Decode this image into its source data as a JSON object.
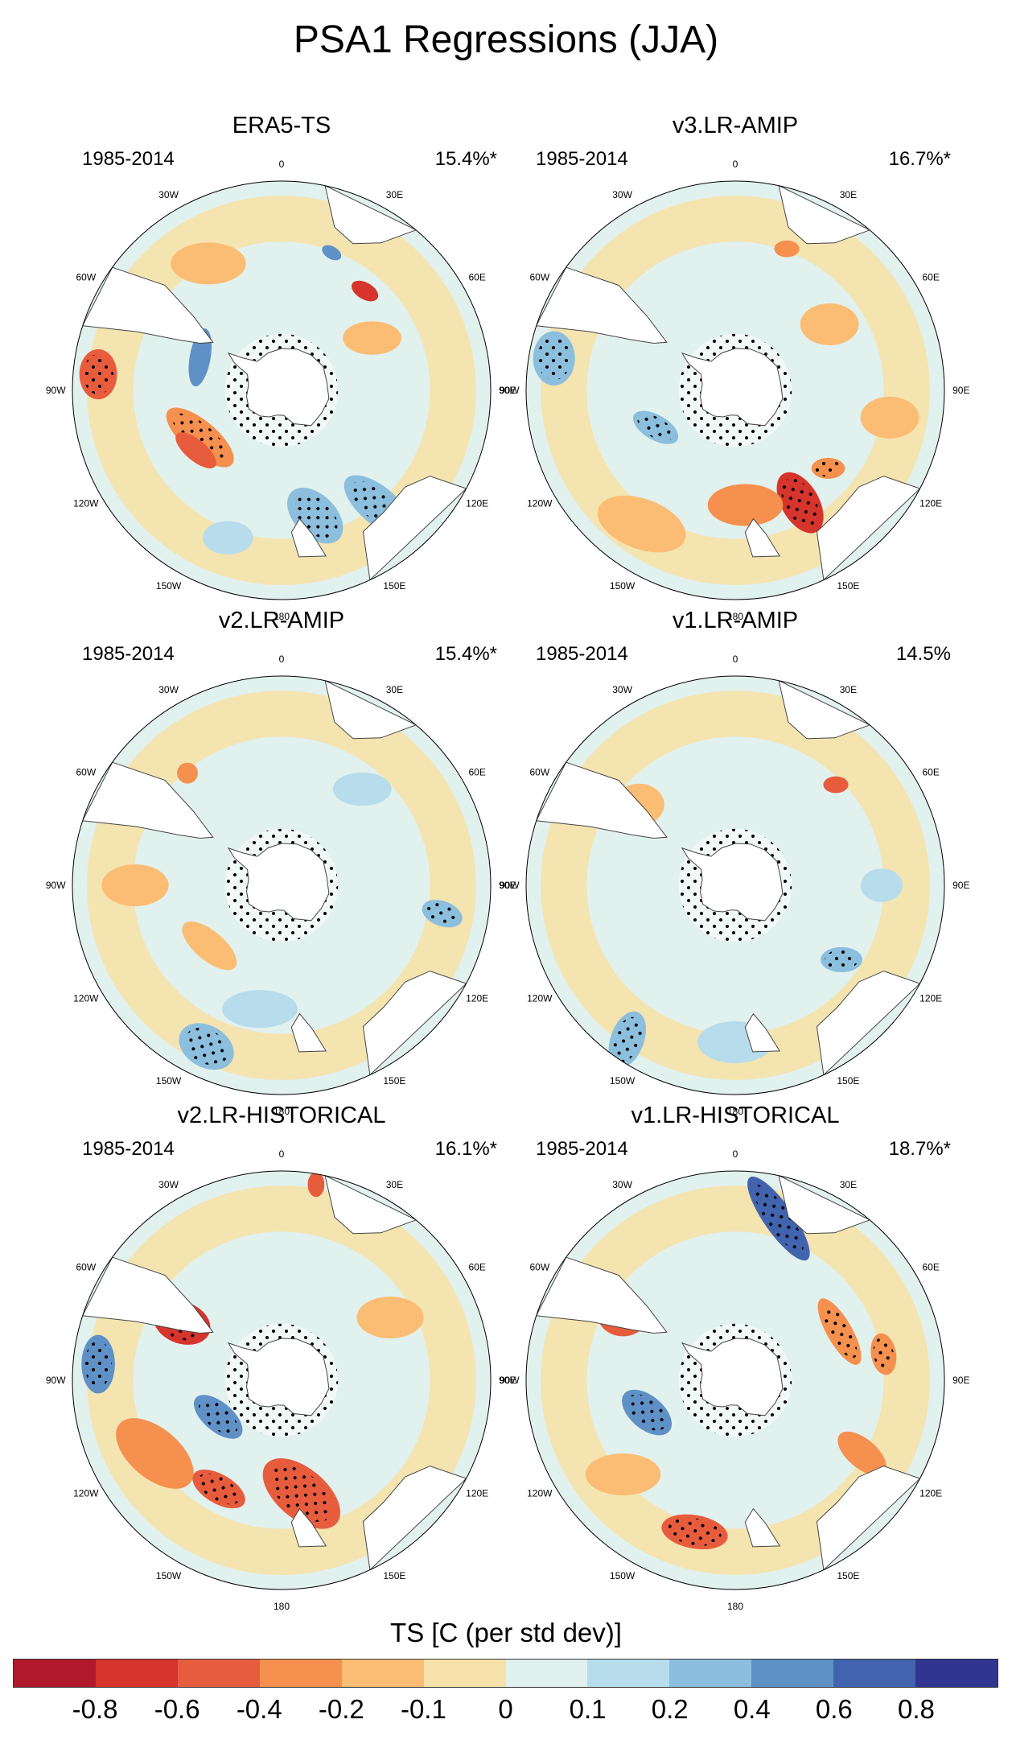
{
  "title": "PSA1 Regressions (JJA)",
  "chart_data": {
    "type": "heatmap",
    "projection": "south-polar-stereographic",
    "variable": "TS",
    "colorbar_label": "TS [C (per std dev)]",
    "levels": [
      "-0.8",
      "-0.6",
      "-0.4",
      "-0.2",
      "-0.1",
      "0",
      "0.1",
      "0.2",
      "0.4",
      "0.6",
      "0.8"
    ],
    "colors": [
      "#b2182b",
      "#d6342c",
      "#e85c3e",
      "#f5904f",
      "#fbbd73",
      "#f6e2a8",
      "#e1f1ee",
      "#b7dceb",
      "#8cbedd",
      "#5f91c7",
      "#4264ae",
      "#2f3590"
    ],
    "longitude_labels": [
      "0",
      "30E",
      "60E",
      "90E",
      "120E",
      "150E",
      "180",
      "150W",
      "120W",
      "90W",
      "60W",
      "30W"
    ],
    "panels": [
      {
        "name": "ERA5-TS",
        "period": "1985-2014",
        "variance": "15.4%*",
        "anomalies": [
          {
            "lon": 165,
            "r": 0.62,
            "rx": 0.16,
            "ry": 0.1,
            "rot": 45,
            "level": 8,
            "dots": true
          },
          {
            "lon": 140,
            "r": 0.72,
            "rx": 0.2,
            "ry": 0.09,
            "rot": 40,
            "level": 8,
            "dots": true
          },
          {
            "lon": 200,
            "r": 0.75,
            "rx": 0.12,
            "ry": 0.08,
            "rot": 0,
            "level": 7,
            "dots": false
          },
          {
            "lon": 240,
            "r": 0.45,
            "rx": 0.2,
            "ry": 0.08,
            "rot": 40,
            "level": 3,
            "dots": true
          },
          {
            "lon": 235,
            "r": 0.5,
            "rx": 0.12,
            "ry": 0.05,
            "rot": 40,
            "level": 2,
            "dots": false
          },
          {
            "lon": 275,
            "r": 0.88,
            "rx": 0.09,
            "ry": 0.12,
            "rot": 0,
            "level": 2,
            "dots": true
          },
          {
            "lon": 292,
            "r": 0.42,
            "rx": 0.05,
            "ry": 0.14,
            "rot": 10,
            "level": 9,
            "dots": false
          },
          {
            "lon": 40,
            "r": 0.62,
            "rx": 0.07,
            "ry": 0.04,
            "rot": 30,
            "level": 1,
            "dots": false
          },
          {
            "lon": 20,
            "r": 0.7,
            "rx": 0.05,
            "ry": 0.03,
            "rot": 30,
            "level": 9,
            "dots": false
          },
          {
            "lon": 60,
            "r": 0.5,
            "rx": 0.14,
            "ry": 0.08,
            "rot": 0,
            "level": 4,
            "dots": false
          },
          {
            "lon": 330,
            "r": 0.7,
            "rx": 0.18,
            "ry": 0.1,
            "rot": 0,
            "level": 4,
            "dots": false
          }
        ]
      },
      {
        "name": "v3.LR-AMIP",
        "period": "1985-2014",
        "variance": "16.7%*",
        "anomalies": [
          {
            "lon": 150,
            "r": 0.62,
            "rx": 0.16,
            "ry": 0.09,
            "rot": 60,
            "level": 1,
            "dots": true
          },
          {
            "lon": 175,
            "r": 0.55,
            "rx": 0.18,
            "ry": 0.1,
            "rot": 0,
            "level": 3,
            "dots": false
          },
          {
            "lon": 215,
            "r": 0.78,
            "rx": 0.22,
            "ry": 0.12,
            "rot": 20,
            "level": 4,
            "dots": false
          },
          {
            "lon": 245,
            "r": 0.42,
            "rx": 0.12,
            "ry": 0.06,
            "rot": 30,
            "level": 8,
            "dots": true
          },
          {
            "lon": 280,
            "r": 0.88,
            "rx": 0.1,
            "ry": 0.13,
            "rot": 0,
            "level": 8,
            "dots": true
          },
          {
            "lon": 130,
            "r": 0.58,
            "rx": 0.08,
            "ry": 0.05,
            "rot": 0,
            "level": 3,
            "dots": true
          },
          {
            "lon": 55,
            "r": 0.55,
            "rx": 0.14,
            "ry": 0.1,
            "rot": 0,
            "level": 4,
            "dots": false
          },
          {
            "lon": 20,
            "r": 0.72,
            "rx": 0.06,
            "ry": 0.04,
            "rot": 0,
            "level": 3,
            "dots": false
          },
          {
            "lon": 100,
            "r": 0.75,
            "rx": 0.14,
            "ry": 0.1,
            "rot": 0,
            "level": 4,
            "dots": false
          }
        ]
      },
      {
        "name": "v2.LR-AMIP",
        "period": "1985-2014",
        "variance": "15.4%*",
        "anomalies": [
          {
            "lon": 205,
            "r": 0.85,
            "rx": 0.14,
            "ry": 0.1,
            "rot": 30,
            "level": 8,
            "dots": true
          },
          {
            "lon": 190,
            "r": 0.6,
            "rx": 0.18,
            "ry": 0.09,
            "rot": 0,
            "level": 7,
            "dots": false
          },
          {
            "lon": 230,
            "r": 0.45,
            "rx": 0.16,
            "ry": 0.07,
            "rot": 40,
            "level": 4,
            "dots": false
          },
          {
            "lon": 100,
            "r": 0.78,
            "rx": 0.1,
            "ry": 0.06,
            "rot": 20,
            "level": 8,
            "dots": true
          },
          {
            "lon": 40,
            "r": 0.6,
            "rx": 0.14,
            "ry": 0.08,
            "rot": 0,
            "level": 7,
            "dots": false
          },
          {
            "lon": 320,
            "r": 0.7,
            "rx": 0.05,
            "ry": 0.05,
            "rot": 0,
            "level": 3,
            "dots": false
          },
          {
            "lon": 270,
            "r": 0.7,
            "rx": 0.16,
            "ry": 0.1,
            "rot": 0,
            "level": 4,
            "dots": false
          }
        ]
      },
      {
        "name": "v1.LR-AMIP",
        "period": "1985-2014",
        "variance": "14.5%",
        "anomalies": [
          {
            "lon": 125,
            "r": 0.62,
            "rx": 0.1,
            "ry": 0.06,
            "rot": 0,
            "level": 8,
            "dots": true
          },
          {
            "lon": 215,
            "r": 0.9,
            "rx": 0.08,
            "ry": 0.14,
            "rot": 20,
            "level": 8,
            "dots": true
          },
          {
            "lon": 45,
            "r": 0.68,
            "rx": 0.06,
            "ry": 0.04,
            "rot": 0,
            "level": 2,
            "dots": false
          },
          {
            "lon": 180,
            "r": 0.75,
            "rx": 0.18,
            "ry": 0.1,
            "rot": 0,
            "level": 7,
            "dots": false
          },
          {
            "lon": 310,
            "r": 0.6,
            "rx": 0.12,
            "ry": 0.1,
            "rot": 0,
            "level": 4,
            "dots": false
          },
          {
            "lon": 90,
            "r": 0.7,
            "rx": 0.1,
            "ry": 0.08,
            "rot": 0,
            "level": 7,
            "dots": false
          }
        ]
      },
      {
        "name": "v2.LR-HISTORICAL",
        "period": "1985-2014",
        "variance": "16.1%*",
        "anomalies": [
          {
            "lon": 170,
            "r": 0.55,
            "rx": 0.22,
            "ry": 0.12,
            "rot": 40,
            "level": 2,
            "dots": true
          },
          {
            "lon": 210,
            "r": 0.6,
            "rx": 0.14,
            "ry": 0.07,
            "rot": 30,
            "level": 2,
            "dots": true
          },
          {
            "lon": 300,
            "r": 0.55,
            "rx": 0.14,
            "ry": 0.1,
            "rot": 20,
            "level": 1,
            "dots": true
          },
          {
            "lon": 240,
            "r": 0.35,
            "rx": 0.14,
            "ry": 0.07,
            "rot": 40,
            "level": 9,
            "dots": true
          },
          {
            "lon": 275,
            "r": 0.88,
            "rx": 0.08,
            "ry": 0.14,
            "rot": 0,
            "level": 9,
            "dots": true
          },
          {
            "lon": 240,
            "r": 0.7,
            "rx": 0.22,
            "ry": 0.12,
            "rot": 40,
            "level": 3,
            "dots": false
          },
          {
            "lon": 10,
            "r": 0.95,
            "rx": 0.04,
            "ry": 0.06,
            "rot": 0,
            "level": 2,
            "dots": false
          },
          {
            "lon": 60,
            "r": 0.6,
            "rx": 0.16,
            "ry": 0.1,
            "rot": 0,
            "level": 4,
            "dots": false
          }
        ]
      },
      {
        "name": "v1.LR-HISTORICAL",
        "period": "1985-2014",
        "variance": "18.7%*",
        "anomalies": [
          {
            "lon": 15,
            "r": 0.8,
            "rx": 0.24,
            "ry": 0.07,
            "rot": 55,
            "level": 10,
            "dots": true
          },
          {
            "lon": 65,
            "r": 0.55,
            "rx": 0.18,
            "ry": 0.06,
            "rot": 60,
            "level": 3,
            "dots": true
          },
          {
            "lon": 80,
            "r": 0.72,
            "rx": 0.1,
            "ry": 0.06,
            "rot": 80,
            "level": 3,
            "dots": true
          },
          {
            "lon": 195,
            "r": 0.75,
            "rx": 0.16,
            "ry": 0.08,
            "rot": 10,
            "level": 2,
            "dots": true
          },
          {
            "lon": 250,
            "r": 0.45,
            "rx": 0.14,
            "ry": 0.08,
            "rot": 40,
            "level": 9,
            "dots": true
          },
          {
            "lon": 300,
            "r": 0.62,
            "rx": 0.12,
            "ry": 0.1,
            "rot": 0,
            "level": 2,
            "dots": false
          },
          {
            "lon": 120,
            "r": 0.7,
            "rx": 0.14,
            "ry": 0.07,
            "rot": 40,
            "level": 3,
            "dots": false
          },
          {
            "lon": 230,
            "r": 0.7,
            "rx": 0.18,
            "ry": 0.1,
            "rot": 0,
            "level": 4,
            "dots": false
          }
        ]
      }
    ]
  }
}
